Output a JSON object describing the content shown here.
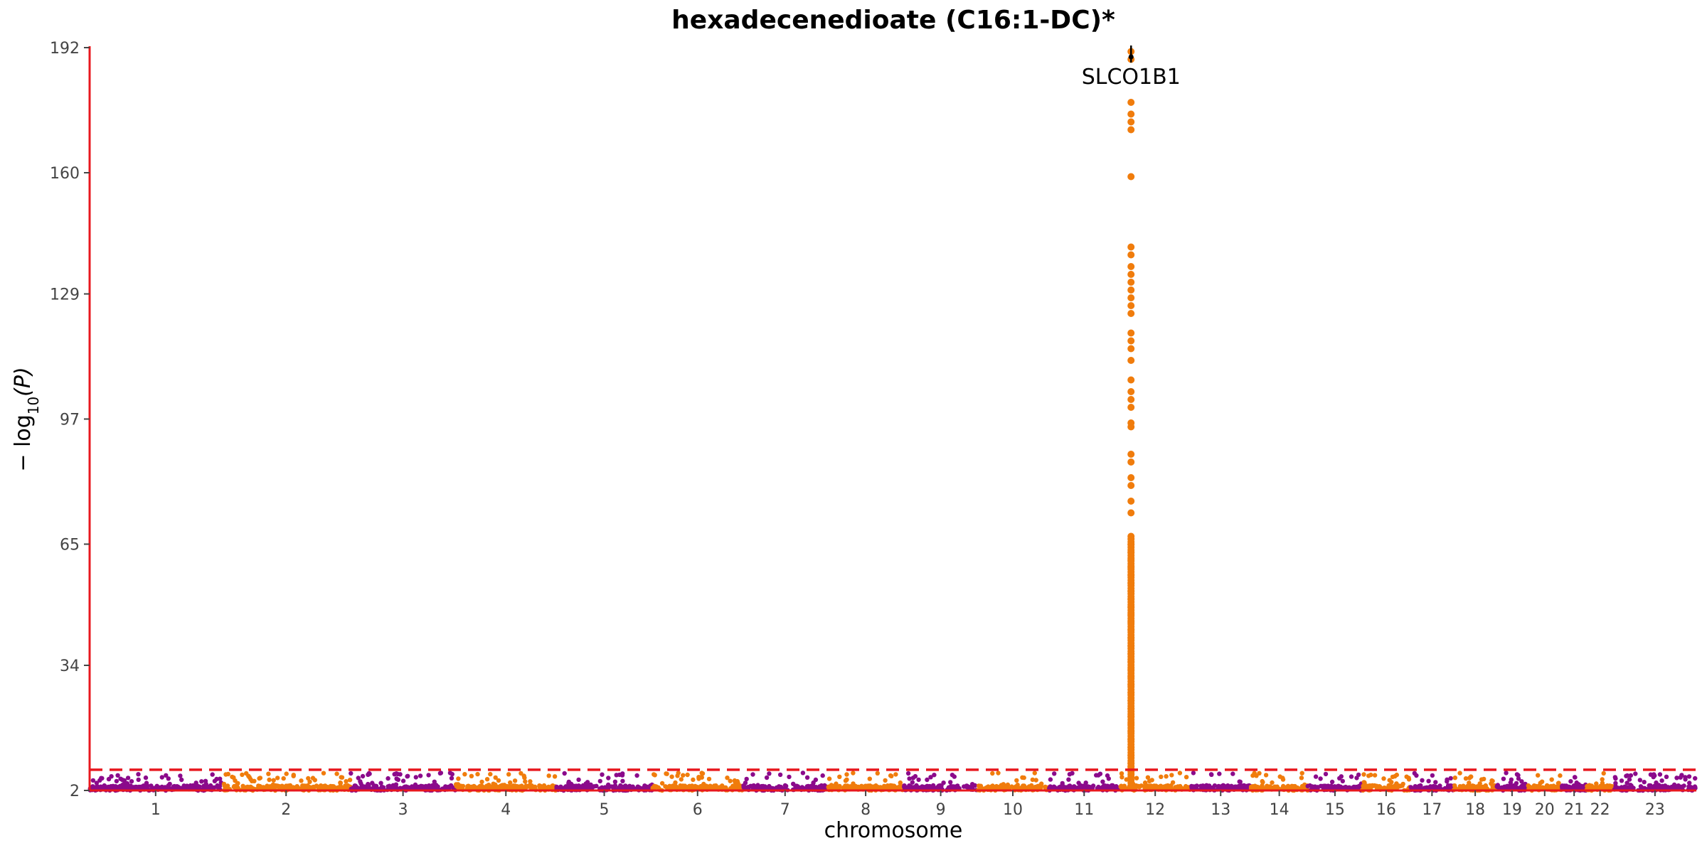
{
  "chart_data": {
    "type": "scatter",
    "title": "hexadecenedioate (C16:1-DC)*",
    "xlabel": "chromosome",
    "ylabel_parts": {
      "prefix": "− log",
      "subscript": "10",
      "arg": "(P)"
    },
    "ylim": [
      2,
      192
    ],
    "yticks": [
      2,
      34,
      65,
      97,
      129,
      160,
      192
    ],
    "threshold": 7.3,
    "colors": {
      "odd": "#8B0A8B",
      "even": "#F07C0C",
      "axis": "#E8181E",
      "threshold": "#E8181E",
      "annotation_marker": "#000000"
    },
    "chromosomes": [
      {
        "label": "1",
        "start": 0,
        "end": 249
      },
      {
        "label": "2",
        "start": 249,
        "end": 492
      },
      {
        "label": "3",
        "start": 492,
        "end": 690
      },
      {
        "label": "4",
        "start": 690,
        "end": 880
      },
      {
        "label": "5",
        "start": 880,
        "end": 1061
      },
      {
        "label": "6",
        "start": 1061,
        "end": 1232
      },
      {
        "label": "7",
        "start": 1232,
        "end": 1391
      },
      {
        "label": "8",
        "start": 1391,
        "end": 1536
      },
      {
        "label": "9",
        "start": 1536,
        "end": 1674
      },
      {
        "label": "10",
        "start": 1674,
        "end": 1808
      },
      {
        "label": "11",
        "start": 1808,
        "end": 1943
      },
      {
        "label": "12",
        "start": 1943,
        "end": 2076
      },
      {
        "label": "13",
        "start": 2076,
        "end": 2190
      },
      {
        "label": "14",
        "start": 2190,
        "end": 2297
      },
      {
        "label": "15",
        "start": 2297,
        "end": 2400
      },
      {
        "label": "16",
        "start": 2400,
        "end": 2490
      },
      {
        "label": "17",
        "start": 2490,
        "end": 2573
      },
      {
        "label": "18",
        "start": 2573,
        "end": 2653
      },
      {
        "label": "19",
        "start": 2653,
        "end": 2712
      },
      {
        "label": "20",
        "start": 2712,
        "end": 2776
      },
      {
        "label": "21",
        "start": 2776,
        "end": 2823
      },
      {
        "label": "22",
        "start": 2823,
        "end": 2874
      },
      {
        "label": "23",
        "start": 2874,
        "end": 3030
      }
    ],
    "peaks": [
      {
        "chrom": "12",
        "pos_offset": 21,
        "values": [
          191,
          189,
          178,
          175,
          173,
          171,
          159,
          141,
          139,
          136,
          134,
          132,
          130,
          128,
          126,
          124,
          119,
          117,
          115,
          112,
          107,
          104,
          102,
          100,
          96,
          95,
          88,
          86,
          82,
          80,
          76,
          73,
          67,
          65,
          63,
          61,
          59,
          57,
          55,
          53,
          51,
          49,
          47,
          45,
          43,
          41,
          39,
          37,
          35,
          33,
          31,
          29,
          27,
          25,
          23,
          21,
          19,
          17,
          15,
          13,
          11,
          9,
          8
        ]
      }
    ],
    "annotations": [
      {
        "label": "SLCO1B1",
        "chrom": "12",
        "pos_offset": 21,
        "value": 190
      }
    ]
  }
}
